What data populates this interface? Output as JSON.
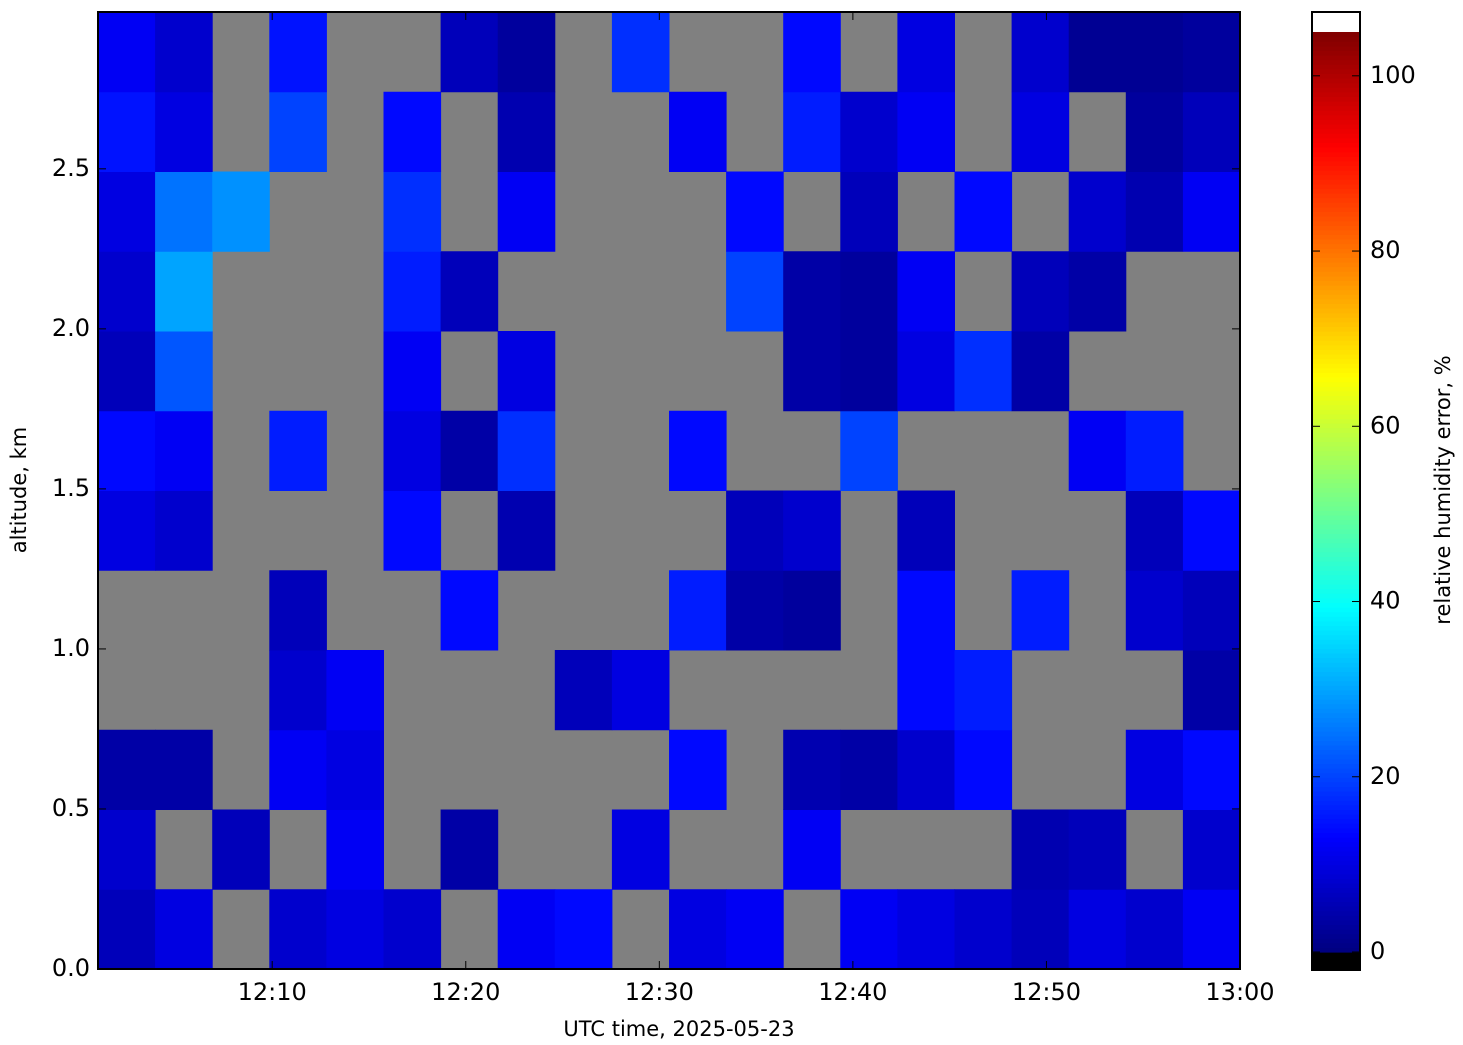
{
  "chart_data": {
    "type": "heatmap",
    "xlabel": "UTC time,  2025-05-23",
    "ylabel": "altitude, km",
    "colorbar_label": "relative humidity error, %",
    "colormap": "jet",
    "missing_color": "#808080",
    "xlim": [
      "12:01",
      "13:00"
    ],
    "xticks": [
      "12:10",
      "12:20",
      "12:30",
      "12:40",
      "12:50",
      "13:00"
    ],
    "ylim": [
      0,
      2.99
    ],
    "yticks": [
      {
        "value": 0,
        "label": "0.0"
      },
      0.5,
      {
        "value": 1,
        "label": "1.0"
      },
      1.5,
      {
        "value": 2,
        "label": "2.0"
      },
      2.5
    ],
    "clim": [
      0,
      105
    ],
    "cticks": [
      0,
      20,
      40,
      60,
      80,
      100
    ],
    "z": [
      [
        6,
        10,
        null,
        8,
        10,
        8,
        null,
        12,
        14,
        null,
        10,
        12,
        null,
        12,
        10,
        8,
        6,
        10,
        8,
        12
      ],
      [
        8,
        null,
        6,
        null,
        12,
        null,
        4,
        null,
        null,
        10,
        null,
        null,
        12,
        null,
        null,
        null,
        5,
        6,
        null,
        8
      ],
      [
        4,
        4,
        null,
        12,
        10,
        null,
        null,
        null,
        null,
        null,
        14,
        null,
        5,
        4,
        8,
        14,
        null,
        null,
        10,
        14
      ],
      [
        null,
        null,
        null,
        8,
        12,
        null,
        null,
        null,
        6,
        10,
        null,
        null,
        null,
        null,
        14,
        16,
        null,
        null,
        null,
        4
      ],
      [
        null,
        null,
        null,
        6,
        null,
        null,
        14,
        null,
        null,
        null,
        16,
        4,
        3,
        null,
        14,
        null,
        16,
        null,
        8,
        6
      ],
      [
        10,
        8,
        null,
        null,
        null,
        14,
        null,
        5,
        null,
        null,
        null,
        6,
        8,
        null,
        6,
        null,
        null,
        null,
        6,
        14
      ],
      [
        14,
        12,
        null,
        16,
        null,
        10,
        4,
        18,
        null,
        null,
        14,
        null,
        null,
        20,
        null,
        null,
        null,
        12,
        16,
        null
      ],
      [
        6,
        22,
        null,
        null,
        null,
        12,
        null,
        10,
        null,
        null,
        null,
        null,
        4,
        3,
        10,
        18,
        4,
        null,
        null,
        null
      ],
      [
        8,
        30,
        null,
        null,
        null,
        16,
        6,
        null,
        null,
        null,
        null,
        20,
        4,
        3,
        12,
        null,
        6,
        4,
        null,
        null
      ],
      [
        10,
        25,
        28,
        null,
        null,
        18,
        null,
        12,
        null,
        null,
        null,
        14,
        null,
        6,
        null,
        14,
        null,
        8,
        5,
        12
      ],
      [
        15,
        10,
        null,
        20,
        null,
        14,
        null,
        5,
        null,
        null,
        12,
        null,
        16,
        8,
        12,
        null,
        10,
        null,
        3,
        6
      ],
      [
        12,
        8,
        null,
        15,
        null,
        null,
        6,
        3,
        null,
        18,
        null,
        null,
        14,
        null,
        10,
        null,
        8,
        2,
        2,
        3
      ]
    ]
  }
}
